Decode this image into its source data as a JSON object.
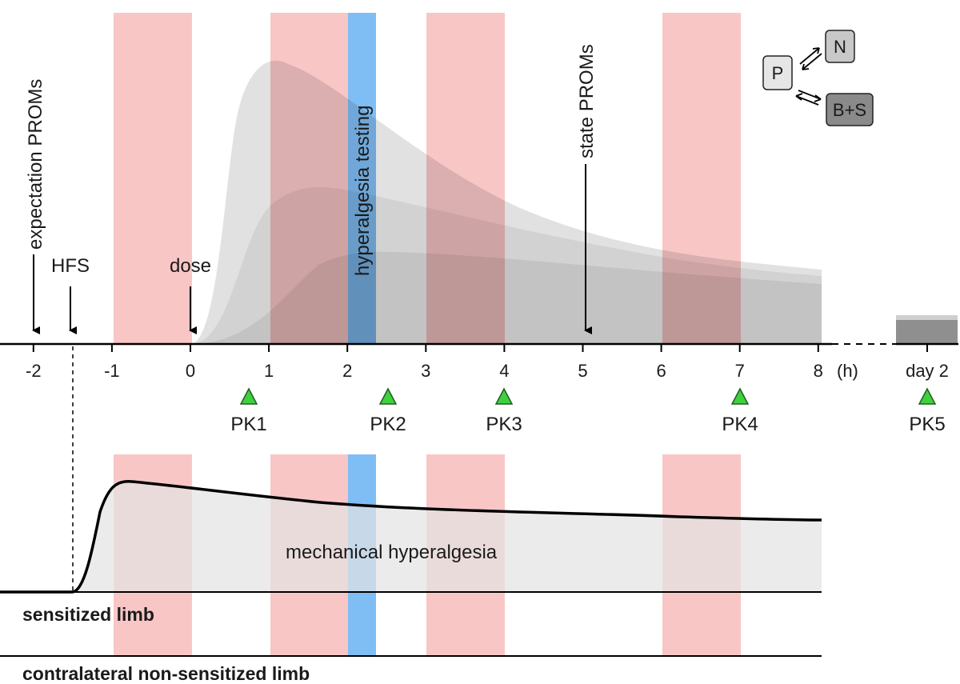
{
  "timeline": {
    "ticks": [
      "-2",
      "-1",
      "0",
      "1",
      "2",
      "3",
      "4",
      "5",
      "6",
      "7",
      "8"
    ],
    "unit": "(h)",
    "day2": "day 2"
  },
  "events": {
    "expectation_proms": "expectation PROMs",
    "hfs": "HFS",
    "dose": "dose",
    "state_proms": "state PROMs",
    "hyperalgesia_testing": "hyperalgesia testing"
  },
  "pk_samples": [
    "PK1",
    "PK2",
    "PK3",
    "PK4",
    "PK5"
  ],
  "legend": {
    "p": "P",
    "n": "N",
    "bs": "B+S"
  },
  "lower": {
    "curve_label": "mechanical hyperalgesia",
    "sensitized": "sensitized limb",
    "contralateral": "contralateral non-sensitized limb"
  },
  "colors": {
    "pink_band": "#f9c4c4",
    "blue_band": "#7fbdf5",
    "curve_fill": "#e6e6e6",
    "triangle": "#3fcf3f"
  }
}
